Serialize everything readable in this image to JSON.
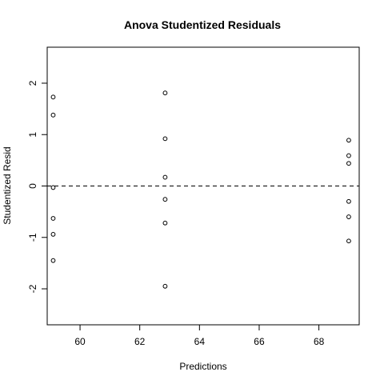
{
  "chart_data": {
    "type": "scatter",
    "title": "Anova Studentized Residuals",
    "xlabel": "Predictions",
    "ylabel": "Studentized Resid",
    "xlim": [
      58.9,
      69.35
    ],
    "ylim": [
      -2.7,
      2.7
    ],
    "xticks": [
      60,
      62,
      64,
      66,
      68
    ],
    "yticks": [
      -2,
      -1,
      0,
      1,
      2
    ],
    "grid": false,
    "legend": "none",
    "reference_line": {
      "y": 0,
      "style": "dashed"
    },
    "points": [
      {
        "x": 59.1,
        "y": 1.73
      },
      {
        "x": 59.1,
        "y": 1.38
      },
      {
        "x": 59.1,
        "y": -0.03
      },
      {
        "x": 59.1,
        "y": -0.63
      },
      {
        "x": 59.1,
        "y": -0.94
      },
      {
        "x": 59.1,
        "y": -1.45
      },
      {
        "x": 62.85,
        "y": 1.81
      },
      {
        "x": 62.85,
        "y": 0.92
      },
      {
        "x": 62.85,
        "y": 0.17
      },
      {
        "x": 62.85,
        "y": -0.26
      },
      {
        "x": 62.85,
        "y": -0.72
      },
      {
        "x": 62.85,
        "y": -1.95
      },
      {
        "x": 69.0,
        "y": 0.89
      },
      {
        "x": 69.0,
        "y": 0.59
      },
      {
        "x": 69.0,
        "y": 0.44
      },
      {
        "x": 69.0,
        "y": -0.3
      },
      {
        "x": 69.0,
        "y": -0.6
      },
      {
        "x": 69.0,
        "y": -1.07
      }
    ]
  }
}
